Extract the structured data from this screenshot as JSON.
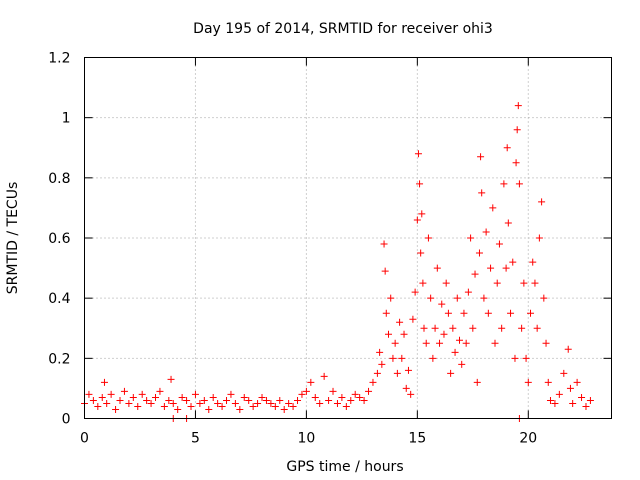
{
  "chart_data": {
    "type": "scatter",
    "title": "Day 195 of 2014, SRMTID for receiver ohi3",
    "xlabel": "GPS time / hours",
    "ylabel": "SRMTID / TECUs",
    "xlim": [
      0,
      23.75
    ],
    "ylim": [
      0,
      1.2
    ],
    "xticks": [
      0,
      5,
      10,
      15,
      20
    ],
    "xtick_labels": [
      "0",
      "5",
      "10",
      "15",
      "20"
    ],
    "yticks": [
      0,
      0.2,
      0.4,
      0.6,
      0.8,
      1.0,
      1.2
    ],
    "ytick_labels": [
      "0",
      "0.2",
      "0.4",
      "0.6",
      "0.8",
      "1",
      "1.2"
    ],
    "grid": true,
    "marker": "+",
    "color": "#ff0000",
    "series": [
      {
        "name": "SRMTID",
        "x": [
          0.0,
          0.2,
          0.4,
          0.6,
          0.8,
          0.9,
          1.0,
          1.2,
          1.4,
          1.6,
          1.8,
          2.0,
          2.2,
          2.4,
          2.6,
          2.8,
          3.0,
          3.2,
          3.4,
          3.6,
          3.8,
          3.9,
          4.0,
          4.2,
          4.4,
          4.6,
          4.8,
          5.0,
          5.2,
          5.4,
          5.6,
          5.8,
          6.0,
          6.2,
          6.4,
          6.6,
          6.8,
          7.0,
          7.2,
          7.4,
          7.6,
          7.8,
          8.0,
          8.2,
          8.4,
          8.6,
          8.8,
          9.0,
          9.2,
          9.4,
          9.6,
          9.8,
          10.0,
          10.2,
          10.4,
          10.6,
          10.8,
          11.0,
          11.2,
          11.4,
          11.6,
          11.8,
          12.0,
          12.2,
          12.4,
          12.6,
          12.8,
          13.0,
          13.2,
          13.3,
          13.4,
          13.5,
          13.55,
          13.6,
          13.7,
          13.8,
          13.9,
          14.0,
          14.1,
          14.2,
          14.3,
          14.4,
          14.5,
          14.6,
          14.7,
          14.8,
          14.9,
          15.0,
          15.05,
          15.1,
          15.15,
          15.2,
          15.25,
          15.3,
          15.4,
          15.5,
          15.6,
          15.7,
          15.8,
          15.9,
          16.0,
          16.1,
          16.2,
          16.3,
          16.4,
          16.5,
          16.6,
          16.7,
          16.8,
          16.9,
          17.0,
          17.1,
          17.2,
          17.3,
          17.4,
          17.5,
          17.6,
          17.7,
          17.8,
          17.85,
          17.9,
          18.0,
          18.1,
          18.2,
          18.3,
          18.4,
          18.5,
          18.6,
          18.7,
          18.8,
          18.9,
          19.0,
          19.05,
          19.1,
          19.2,
          19.3,
          19.4,
          19.45,
          19.5,
          19.55,
          19.6,
          19.7,
          19.8,
          19.9,
          20.0,
          20.1,
          20.2,
          20.3,
          20.4,
          20.5,
          20.6,
          20.7,
          20.8,
          20.9,
          21.0,
          21.2,
          21.4,
          21.6,
          21.8,
          21.9,
          22.0,
          22.2,
          22.4,
          22.6,
          22.8,
          4.0,
          4.6,
          19.6
        ],
        "y": [
          0.05,
          0.08,
          0.06,
          0.04,
          0.07,
          0.12,
          0.05,
          0.08,
          0.03,
          0.06,
          0.09,
          0.05,
          0.07,
          0.04,
          0.08,
          0.06,
          0.05,
          0.07,
          0.09,
          0.04,
          0.06,
          0.13,
          0.05,
          0.03,
          0.07,
          0.06,
          0.04,
          0.08,
          0.05,
          0.06,
          0.03,
          0.07,
          0.05,
          0.04,
          0.06,
          0.08,
          0.05,
          0.03,
          0.07,
          0.06,
          0.04,
          0.05,
          0.07,
          0.06,
          0.05,
          0.04,
          0.06,
          0.03,
          0.05,
          0.04,
          0.06,
          0.08,
          0.09,
          0.12,
          0.07,
          0.05,
          0.14,
          0.06,
          0.09,
          0.05,
          0.07,
          0.04,
          0.06,
          0.08,
          0.07,
          0.06,
          0.09,
          0.12,
          0.15,
          0.22,
          0.18,
          0.58,
          0.49,
          0.35,
          0.28,
          0.4,
          0.2,
          0.25,
          0.15,
          0.32,
          0.2,
          0.28,
          0.1,
          0.16,
          0.08,
          0.33,
          0.42,
          0.66,
          0.88,
          0.78,
          0.55,
          0.68,
          0.45,
          0.3,
          0.25,
          0.6,
          0.4,
          0.2,
          0.3,
          0.5,
          0.25,
          0.38,
          0.28,
          0.45,
          0.35,
          0.15,
          0.3,
          0.22,
          0.4,
          0.26,
          0.18,
          0.35,
          0.25,
          0.42,
          0.6,
          0.3,
          0.48,
          0.12,
          0.55,
          0.87,
          0.75,
          0.4,
          0.62,
          0.35,
          0.5,
          0.7,
          0.25,
          0.45,
          0.58,
          0.3,
          0.78,
          0.5,
          0.9,
          0.65,
          0.35,
          0.52,
          0.2,
          0.85,
          0.96,
          1.04,
          0.78,
          0.3,
          0.45,
          0.2,
          0.12,
          0.35,
          0.52,
          0.45,
          0.3,
          0.6,
          0.72,
          0.4,
          0.25,
          0.12,
          0.06,
          0.05,
          0.08,
          0.15,
          0.23,
          0.1,
          0.05,
          0.12,
          0.07,
          0.04,
          0.06,
          0.0,
          0.0,
          0.0
        ]
      }
    ]
  }
}
